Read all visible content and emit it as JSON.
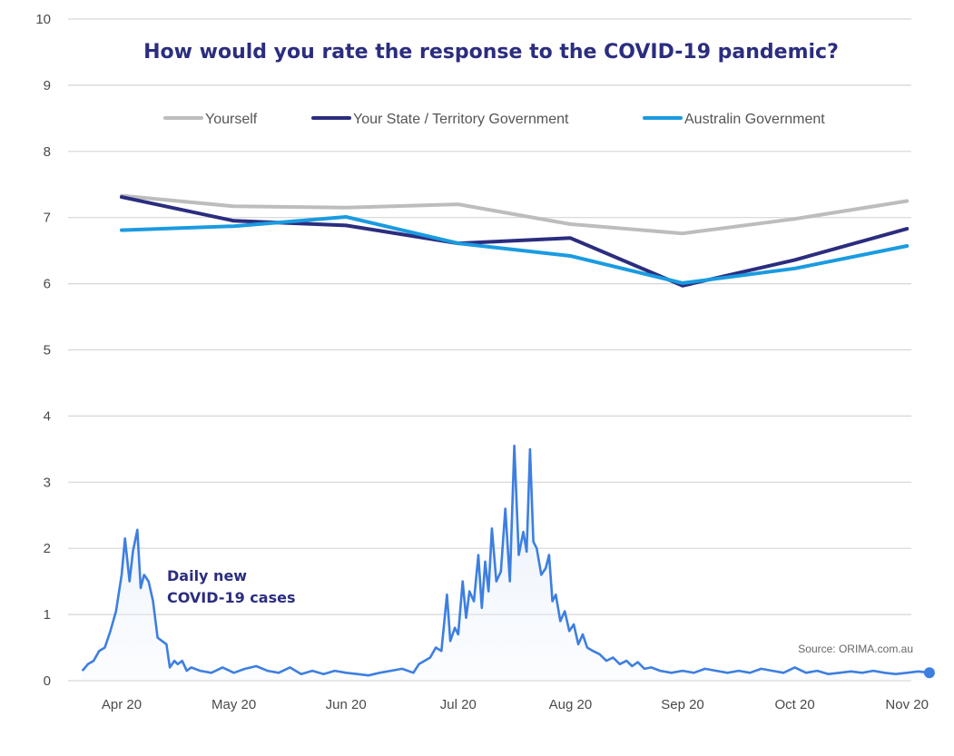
{
  "chart_data": {
    "type": "line",
    "title": "How would you rate the response to the COVID-19 pandemic?",
    "y_ticks": [
      "0",
      "1",
      "2",
      "3",
      "4",
      "5",
      "6",
      "7",
      "8",
      "9",
      "10"
    ],
    "ylim": [
      0,
      10
    ],
    "grid": true,
    "legend_position": "top",
    "x_ticks": [
      "Apr 20",
      "May 20",
      "Jun 20",
      "Jul 20",
      "Aug 20",
      "Sep 20",
      "Oct 20",
      "Nov 20"
    ],
    "series": [
      {
        "name": "Yourself",
        "color": "#bdbdbd",
        "points": [
          [
            0,
            7.33
          ],
          [
            1,
            7.17
          ],
          [
            2,
            7.15
          ],
          [
            3,
            7.2
          ],
          [
            4,
            6.9
          ],
          [
            5,
            6.76
          ],
          [
            6,
            6.98
          ],
          [
            7,
            7.25
          ]
        ]
      },
      {
        "name": "Your State / Territory Government",
        "color": "#2b2d7f",
        "points": [
          [
            0,
            7.31
          ],
          [
            1,
            6.95
          ],
          [
            2,
            6.88
          ],
          [
            3,
            6.61
          ],
          [
            4,
            6.69
          ],
          [
            5,
            5.97
          ],
          [
            6,
            6.36
          ],
          [
            7,
            6.83
          ]
        ]
      },
      {
        "name": "Australin Government",
        "color": "#1a9be0",
        "points": [
          [
            0,
            6.81
          ],
          [
            1,
            6.87
          ],
          [
            2,
            7.01
          ],
          [
            3,
            6.61
          ],
          [
            4,
            6.42
          ],
          [
            5,
            6.01
          ],
          [
            6,
            6.23
          ],
          [
            7,
            6.57
          ]
        ]
      }
    ],
    "cases_series": {
      "color": "#3d7fe0",
      "points": [
        [
          -0.35,
          0.15
        ],
        [
          -0.3,
          0.25
        ],
        [
          -0.25,
          0.3
        ],
        [
          -0.2,
          0.45
        ],
        [
          -0.15,
          0.5
        ],
        [
          -0.1,
          0.75
        ],
        [
          -0.05,
          1.05
        ],
        [
          0.0,
          1.6
        ],
        [
          0.03,
          2.15
        ],
        [
          0.07,
          1.5
        ],
        [
          0.1,
          1.95
        ],
        [
          0.14,
          2.28
        ],
        [
          0.17,
          1.4
        ],
        [
          0.2,
          1.6
        ],
        [
          0.24,
          1.5
        ],
        [
          0.28,
          1.2
        ],
        [
          0.32,
          0.65
        ],
        [
          0.36,
          0.6
        ],
        [
          0.4,
          0.55
        ],
        [
          0.43,
          0.2
        ],
        [
          0.47,
          0.3
        ],
        [
          0.5,
          0.25
        ],
        [
          0.54,
          0.3
        ],
        [
          0.58,
          0.15
        ],
        [
          0.62,
          0.2
        ],
        [
          0.7,
          0.15
        ],
        [
          0.8,
          0.12
        ],
        [
          0.9,
          0.2
        ],
        [
          1.0,
          0.12
        ],
        [
          1.1,
          0.18
        ],
        [
          1.2,
          0.22
        ],
        [
          1.3,
          0.15
        ],
        [
          1.4,
          0.12
        ],
        [
          1.5,
          0.2
        ],
        [
          1.6,
          0.1
        ],
        [
          1.7,
          0.15
        ],
        [
          1.8,
          0.1
        ],
        [
          1.9,
          0.15
        ],
        [
          2.0,
          0.12
        ],
        [
          2.1,
          0.1
        ],
        [
          2.2,
          0.08
        ],
        [
          2.3,
          0.12
        ],
        [
          2.4,
          0.15
        ],
        [
          2.5,
          0.18
        ],
        [
          2.6,
          0.12
        ],
        [
          2.65,
          0.25
        ],
        [
          2.7,
          0.3
        ],
        [
          2.75,
          0.35
        ],
        [
          2.8,
          0.5
        ],
        [
          2.85,
          0.45
        ],
        [
          2.9,
          1.3
        ],
        [
          2.93,
          0.6
        ],
        [
          2.97,
          0.8
        ],
        [
          3.0,
          0.7
        ],
        [
          3.04,
          1.5
        ],
        [
          3.07,
          0.95
        ],
        [
          3.1,
          1.35
        ],
        [
          3.14,
          1.2
        ],
        [
          3.18,
          1.9
        ],
        [
          3.21,
          1.1
        ],
        [
          3.24,
          1.8
        ],
        [
          3.27,
          1.35
        ],
        [
          3.3,
          2.3
        ],
        [
          3.34,
          1.5
        ],
        [
          3.38,
          1.65
        ],
        [
          3.42,
          2.6
        ],
        [
          3.46,
          1.5
        ],
        [
          3.5,
          3.55
        ],
        [
          3.54,
          1.9
        ],
        [
          3.58,
          2.25
        ],
        [
          3.61,
          1.95
        ],
        [
          3.64,
          3.5
        ],
        [
          3.67,
          2.1
        ],
        [
          3.7,
          2.0
        ],
        [
          3.74,
          1.6
        ],
        [
          3.78,
          1.7
        ],
        [
          3.81,
          1.9
        ],
        [
          3.84,
          1.2
        ],
        [
          3.87,
          1.3
        ],
        [
          3.91,
          0.9
        ],
        [
          3.95,
          1.05
        ],
        [
          3.99,
          0.75
        ],
        [
          4.03,
          0.85
        ],
        [
          4.07,
          0.55
        ],
        [
          4.11,
          0.7
        ],
        [
          4.15,
          0.5
        ],
        [
          4.2,
          0.45
        ],
        [
          4.26,
          0.4
        ],
        [
          4.32,
          0.3
        ],
        [
          4.38,
          0.35
        ],
        [
          4.44,
          0.25
        ],
        [
          4.5,
          0.3
        ],
        [
          4.55,
          0.22
        ],
        [
          4.6,
          0.28
        ],
        [
          4.66,
          0.18
        ],
        [
          4.72,
          0.2
        ],
        [
          4.8,
          0.15
        ],
        [
          4.9,
          0.12
        ],
        [
          5.0,
          0.15
        ],
        [
          5.1,
          0.12
        ],
        [
          5.2,
          0.18
        ],
        [
          5.3,
          0.15
        ],
        [
          5.4,
          0.12
        ],
        [
          5.5,
          0.15
        ],
        [
          5.6,
          0.12
        ],
        [
          5.7,
          0.18
        ],
        [
          5.8,
          0.15
        ],
        [
          5.9,
          0.12
        ],
        [
          6.0,
          0.2
        ],
        [
          6.1,
          0.12
        ],
        [
          6.2,
          0.15
        ],
        [
          6.3,
          0.1
        ],
        [
          6.4,
          0.12
        ],
        [
          6.5,
          0.14
        ],
        [
          6.6,
          0.12
        ],
        [
          6.7,
          0.15
        ],
        [
          6.8,
          0.12
        ],
        [
          6.9,
          0.1
        ],
        [
          7.0,
          0.12
        ],
        [
          7.1,
          0.14
        ],
        [
          7.2,
          0.12
        ]
      ]
    },
    "annotation": [
      "Daily new",
      "COVID-19 cases"
    ],
    "source": "Source: ORIMA.com.au"
  }
}
